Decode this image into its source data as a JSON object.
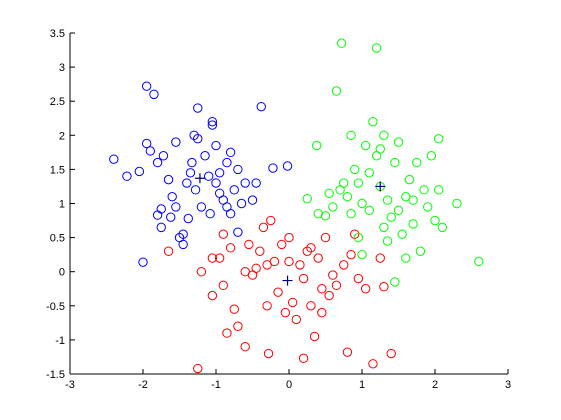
{
  "chart_data": {
    "type": "scatter",
    "xlim": [
      -3,
      3
    ],
    "ylim": [
      -1.5,
      3.5
    ],
    "xticks": [
      -3,
      -2,
      -1,
      0,
      1,
      2,
      3
    ],
    "yticks": [
      -1.5,
      -1,
      -0.5,
      0,
      0.5,
      1,
      1.5,
      2,
      2.5,
      3,
      3.5
    ],
    "series": [
      {
        "color": "#0000ff",
        "marker": "o",
        "x": [
          -2.4,
          -2.22,
          -2.05,
          -1.95,
          -1.95,
          -1.9,
          -1.85,
          -1.8,
          -1.75,
          -1.8,
          -1.75,
          -2.0,
          -1.72,
          -1.65,
          -1.6,
          -1.55,
          -1.62,
          -1.5,
          -1.45,
          -1.4,
          -1.35,
          -1.3,
          -1.33,
          -1.28,
          -1.25,
          -1.2,
          -1.15,
          -1.05,
          -1.05,
          -1.0,
          -1.0,
          -0.95,
          -0.95,
          -0.9,
          -0.85,
          -0.8,
          -0.8,
          -0.75,
          -0.7,
          -0.65,
          -0.6,
          -0.5,
          -0.45,
          -0.38,
          -0.22,
          -0.02,
          -1.25,
          -1.08,
          -1.55,
          -1.45,
          -1.38,
          -1.1,
          -0.85,
          -0.7
        ],
        "values": [
          1.65,
          1.4,
          1.47,
          2.72,
          1.88,
          1.77,
          2.6,
          1.6,
          0.92,
          0.83,
          0.65,
          0.14,
          1.7,
          1.35,
          1.1,
          0.95,
          0.8,
          0.5,
          0.4,
          1.3,
          1.45,
          2.0,
          1.6,
          1.2,
          1.95,
          0.95,
          1.7,
          2.2,
          2.15,
          1.85,
          1.3,
          1.15,
          1.45,
          1.05,
          1.6,
          1.75,
          0.85,
          1.2,
          1.5,
          1.0,
          1.3,
          1.05,
          1.3,
          2.42,
          1.52,
          1.55,
          2.4,
          0.85,
          1.9,
          0.55,
          0.78,
          1.4,
          0.95,
          0.58
        ]
      },
      {
        "color": "#ff0000",
        "marker": "o",
        "x": [
          -1.65,
          -1.25,
          -1.2,
          -1.05,
          -1.05,
          -0.95,
          -0.9,
          -0.85,
          -0.8,
          -0.75,
          -0.7,
          -0.6,
          -0.55,
          -0.5,
          -0.45,
          -0.4,
          -0.35,
          -0.3,
          -0.28,
          -0.25,
          -0.2,
          -0.15,
          -0.1,
          -0.05,
          0.0,
          0.05,
          0.1,
          0.15,
          0.2,
          0.2,
          0.3,
          0.3,
          0.35,
          0.4,
          0.45,
          0.5,
          0.55,
          0.6,
          0.65,
          0.75,
          0.8,
          0.85,
          0.9,
          0.95,
          1.05,
          1.15,
          1.3,
          1.4,
          0.0,
          -0.6,
          -0.3,
          0.25,
          -0.9,
          0.45,
          1.25
        ],
        "values": [
          0.3,
          -1.42,
          0.0,
          -0.35,
          0.2,
          0.2,
          -0.2,
          -0.9,
          0.35,
          -0.55,
          -0.8,
          -1.1,
          0.4,
          -0.05,
          0.05,
          0.3,
          0.65,
          -0.5,
          -1.2,
          0.75,
          0.15,
          -0.3,
          0.4,
          -0.6,
          0.15,
          -0.45,
          -0.7,
          0.1,
          -0.1,
          -1.27,
          0.35,
          -0.5,
          -0.95,
          0.2,
          -0.25,
          0.5,
          -0.35,
          -0.05,
          -0.2,
          0.1,
          -1.18,
          0.25,
          0.55,
          -0.1,
          -0.25,
          -1.35,
          -0.22,
          -1.2,
          0.5,
          0.0,
          0.1,
          0.3,
          0.55,
          -0.6,
          0.2
        ]
      },
      {
        "color": "#00ff00",
        "marker": "o",
        "x": [
          0.25,
          0.38,
          0.5,
          0.55,
          0.6,
          0.65,
          0.72,
          0.75,
          0.8,
          0.85,
          0.9,
          0.95,
          1.0,
          1.05,
          1.1,
          1.15,
          1.2,
          1.2,
          1.25,
          1.3,
          1.35,
          1.4,
          1.45,
          1.5,
          1.55,
          1.6,
          1.65,
          1.7,
          1.75,
          1.8,
          1.85,
          1.9,
          1.95,
          2.0,
          2.05,
          2.1,
          2.3,
          2.6,
          1.45,
          1.0,
          0.85,
          1.1,
          1.3,
          0.7,
          1.7,
          0.95,
          1.6,
          1.5,
          1.35,
          2.05,
          0.4,
          1.25
        ],
        "values": [
          1.07,
          1.85,
          0.82,
          1.15,
          0.95,
          2.65,
          3.35,
          1.3,
          1.1,
          2.0,
          1.5,
          0.5,
          1.0,
          1.85,
          0.9,
          2.2,
          3.28,
          1.7,
          1.25,
          0.65,
          1.05,
          0.8,
          1.6,
          1.9,
          0.55,
          1.1,
          1.35,
          0.7,
          1.6,
          0.3,
          1.2,
          0.95,
          1.7,
          0.75,
          1.95,
          0.65,
          1.0,
          0.15,
          -0.15,
          0.25,
          0.85,
          1.45,
          2.0,
          1.2,
          1.05,
          1.3,
          0.2,
          0.9,
          0.45,
          1.2,
          0.85,
          1.8
        ]
      },
      {
        "color": "#000080",
        "marker": "+",
        "x": [
          -1.22,
          -0.02,
          1.25
        ],
        "values": [
          1.37,
          -0.13,
          1.25
        ]
      }
    ]
  }
}
